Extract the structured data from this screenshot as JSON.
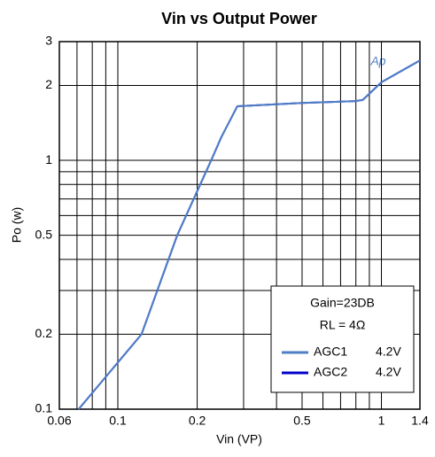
{
  "chart_data": {
    "type": "line",
    "title": "Vin vs Output Power",
    "xlabel": "Vin (VP)",
    "ylabel": "Po (w)",
    "xscale": "log",
    "yscale": "log",
    "grid": true,
    "xlim": [
      0.06,
      1.4
    ],
    "ylim": [
      0.1,
      3
    ],
    "xticks": [
      0.06,
      0.1,
      0.2,
      0.5,
      1,
      1.4
    ],
    "yticks": [
      0.1,
      0.2,
      0.5,
      1,
      2,
      3
    ],
    "xgrid": [
      0.07,
      0.08,
      0.09,
      0.3,
      0.4,
      0.6,
      0.7,
      0.8,
      0.9
    ],
    "ygrid": [
      0.3,
      0.4,
      0.6,
      0.7,
      0.8,
      0.9
    ],
    "legend_notes": [
      "Gain=23DB",
      "RL = 4Ω"
    ],
    "legend_position": "lower right",
    "x": [
      0.071,
      0.123,
      0.168,
      0.226,
      0.247,
      0.284,
      0.5,
      0.8,
      0.85,
      1.0,
      1.4
    ],
    "series": [
      {
        "name": "AGC1",
        "condition": "4.2V",
        "color": "#4f7fc4",
        "values": [
          0.1,
          0.2,
          0.5,
          1.0,
          1.24,
          1.65,
          1.7,
          1.73,
          1.75,
          2.06,
          2.52
        ]
      },
      {
        "name": "AGC2",
        "condition": "4.2V",
        "color": "#0000cc",
        "values": [
          0.1,
          0.2,
          0.5,
          1.0,
          1.24,
          1.65,
          1.7,
          1.73,
          1.75,
          2.06,
          2.52
        ]
      }
    ]
  }
}
